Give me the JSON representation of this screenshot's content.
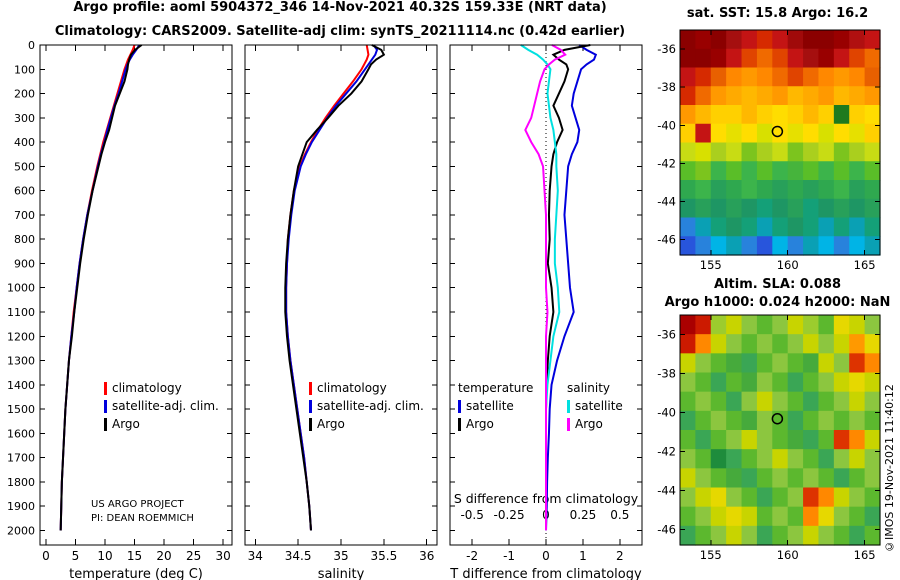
{
  "header": {
    "title_line1": "Argo profile: aoml 5904372_346 14-Nov-2021 40.32S 159.33E (NRT data)",
    "title_line2": "Climatology: CARS2009. Satellite-adj clim: synTS_20211114.nc (0.42d earlier)"
  },
  "annotations": {
    "project_line1": "US ARGO PROJECT",
    "project_line2": "PI: DEAN ROEMMICH",
    "credit_vertical": "©IMOS 19-Nov-2021 11:40:12"
  },
  "legends": {
    "profile": {
      "items": [
        {
          "label": "climatology",
          "color": "#ff0000"
        },
        {
          "label": "satellite-adj. clim.",
          "color": "#0000dd"
        },
        {
          "label": "Argo",
          "color": "#000000"
        }
      ]
    },
    "difference": {
      "temperature_header": "temperature",
      "salinity_header": "salinity",
      "temperature_items": [
        {
          "label": "satellite",
          "color": "#0000dd"
        },
        {
          "label": "Argo",
          "color": "#000000"
        }
      ],
      "salinity_items": [
        {
          "label": "satellite",
          "color": "#00e0e0"
        },
        {
          "label": "Argo",
          "color": "#ff00ff"
        }
      ]
    }
  },
  "chart_data": [
    {
      "id": "temperature_profile",
      "type": "line",
      "xlabel": "temperature (deg C)",
      "xlim": [
        0,
        30
      ],
      "ylim": [
        0,
        2000
      ],
      "x_ticks": [
        0,
        5,
        10,
        15,
        20,
        25,
        30
      ],
      "depth_ticks": [
        0,
        100,
        200,
        300,
        400,
        500,
        600,
        700,
        800,
        900,
        1000,
        1100,
        1200,
        1300,
        1400,
        1500,
        1600,
        1700,
        1800,
        1900,
        2000
      ],
      "depths": [
        0,
        20,
        40,
        60,
        80,
        100,
        150,
        200,
        250,
        300,
        350,
        400,
        450,
        500,
        600,
        700,
        800,
        900,
        1000,
        1100,
        1200,
        1300,
        1400,
        1500,
        1600,
        1700,
        1800,
        1900,
        2000
      ],
      "series": [
        {
          "name": "climatology",
          "color": "#ff0000",
          "values": [
            15.0,
            14.7,
            14.3,
            13.9,
            13.6,
            13.3,
            12.7,
            12.1,
            11.5,
            10.9,
            10.3,
            9.7,
            9.2,
            8.7,
            7.8,
            7.0,
            6.3,
            5.7,
            5.2,
            4.7,
            4.3,
            3.9,
            3.6,
            3.3,
            3.1,
            2.9,
            2.7,
            2.6,
            2.5
          ]
        },
        {
          "name": "satellite-adj. clim.",
          "color": "#0000dd",
          "values": [
            15.8,
            15.3,
            14.7,
            14.2,
            13.8,
            13.5,
            12.9,
            12.3,
            11.6,
            11.0,
            10.4,
            9.9,
            9.3,
            8.8,
            7.9,
            7.0,
            6.3,
            5.7,
            5.2,
            4.8,
            4.3,
            3.9,
            3.6,
            3.3,
            3.1,
            2.9,
            2.7,
            2.6,
            2.5
          ]
        },
        {
          "name": "Argo",
          "color": "#000000",
          "values": [
            16.2,
            15.1,
            14.4,
            14.1,
            13.9,
            13.8,
            13.3,
            12.5,
            11.7,
            11.2,
            10.7,
            10.0,
            9.4,
            8.9,
            7.9,
            7.1,
            6.4,
            5.8,
            5.3,
            4.8,
            4.4,
            3.9,
            3.6,
            3.3,
            3.1,
            2.9,
            2.7,
            2.6,
            2.5
          ]
        }
      ]
    },
    {
      "id": "salinity_profile",
      "type": "line",
      "xlabel": "salinity",
      "xlim": [
        34,
        36
      ],
      "ylim": [
        0,
        2000
      ],
      "x_ticks": [
        34,
        34.5,
        35,
        35.5,
        36
      ],
      "depth_ticks": [
        0,
        100,
        200,
        300,
        400,
        500,
        600,
        700,
        800,
        900,
        1000,
        1100,
        1200,
        1300,
        1400,
        1500,
        1600,
        1700,
        1800,
        1900,
        2000
      ],
      "depths": [
        0,
        20,
        40,
        60,
        80,
        100,
        150,
        200,
        250,
        300,
        350,
        400,
        450,
        500,
        600,
        700,
        800,
        900,
        1000,
        1100,
        1200,
        1300,
        1400,
        1500,
        1600,
        1700,
        1800,
        1900,
        2000
      ],
      "series": [
        {
          "name": "climatology",
          "color": "#ff0000",
          "values": [
            35.3,
            35.31,
            35.32,
            35.3,
            35.27,
            35.24,
            35.14,
            35.03,
            34.92,
            34.82,
            34.73,
            34.65,
            34.58,
            34.52,
            34.45,
            34.41,
            34.38,
            34.37,
            34.36,
            34.36,
            34.38,
            34.41,
            34.45,
            34.49,
            34.53,
            34.57,
            34.6,
            34.63,
            34.65
          ]
        },
        {
          "name": "satellite-adj. clim.",
          "color": "#0000dd",
          "values": [
            35.38,
            35.42,
            35.4,
            35.36,
            35.32,
            35.28,
            35.18,
            35.06,
            34.94,
            34.84,
            34.75,
            34.66,
            34.59,
            34.53,
            34.46,
            34.42,
            34.39,
            34.37,
            34.36,
            34.36,
            34.38,
            34.41,
            34.45,
            34.49,
            34.53,
            34.57,
            34.6,
            34.63,
            34.65
          ]
        },
        {
          "name": "Argo",
          "color": "#000000",
          "values": [
            35.36,
            35.47,
            35.5,
            35.41,
            35.35,
            35.32,
            35.24,
            35.12,
            34.97,
            34.85,
            34.72,
            34.6,
            34.55,
            34.5,
            34.45,
            34.41,
            34.38,
            34.36,
            34.35,
            34.35,
            34.37,
            34.4,
            34.44,
            34.48,
            34.52,
            34.56,
            34.6,
            34.63,
            34.65
          ]
        }
      ]
    },
    {
      "id": "difference_profile",
      "type": "line",
      "xlabel": "T difference from climatology",
      "xlim": [
        -2,
        2
      ],
      "ylim": [
        0,
        2000
      ],
      "x_ticks": [
        -2,
        -1,
        0,
        1,
        2
      ],
      "secondary_axis": {
        "label": "S difference from climatology",
        "ticks": [
          -0.5,
          -0.25,
          0,
          0.25,
          0.5
        ],
        "scale_to_primary": 4
      },
      "depth_ticks": [
        0,
        100,
        200,
        300,
        400,
        500,
        600,
        700,
        800,
        900,
        1000,
        1100,
        1200,
        1300,
        1400,
        1500,
        1600,
        1700,
        1800,
        1900,
        2000
      ],
      "depths": [
        0,
        20,
        40,
        60,
        80,
        100,
        150,
        200,
        250,
        300,
        350,
        400,
        450,
        500,
        600,
        700,
        800,
        900,
        1000,
        1100,
        1200,
        1300,
        1400,
        1500,
        1600,
        1700,
        1800,
        1900,
        2000
      ],
      "series": [
        {
          "name": "temperature satellite",
          "axis": "T",
          "color": "#0000dd",
          "values": [
            0.9,
            1.1,
            1.35,
            1.3,
            1.1,
            0.95,
            0.85,
            0.75,
            0.7,
            0.8,
            0.9,
            0.85,
            0.7,
            0.6,
            0.55,
            0.5,
            0.55,
            0.6,
            0.65,
            0.75,
            0.5,
            0.3,
            0.15,
            0.1,
            0.08,
            0.05,
            0.03,
            0.02,
            0.0
          ]
        },
        {
          "name": "temperature Argo",
          "axis": "T",
          "color": "#000000",
          "values": [
            1.2,
            0.5,
            0.2,
            0.35,
            0.55,
            0.6,
            0.5,
            0.35,
            0.2,
            0.35,
            0.45,
            0.3,
            0.2,
            0.15,
            0.1,
            0.08,
            0.1,
            0.05,
            0.15,
            0.2,
            0.1,
            0.05,
            0.02,
            0.0,
            0.0,
            0.0,
            0.0,
            0.0,
            0.0
          ]
        },
        {
          "name": "salinity satellite",
          "axis": "S",
          "color": "#00e0e0",
          "values": [
            -0.17,
            -0.12,
            -0.06,
            -0.02,
            0.01,
            0.03,
            0.02,
            0.01,
            0.02,
            0.03,
            0.05,
            0.06,
            0.07,
            0.07,
            0.08,
            0.07,
            0.06,
            0.06,
            0.08,
            0.09,
            0.05,
            0.03,
            0.01,
            0.0,
            0.0,
            0.0,
            0.0,
            0.0,
            0.0
          ]
        },
        {
          "name": "salinity Argo",
          "axis": "S",
          "color": "#ff00ff",
          "values": [
            0.04,
            0.1,
            0.13,
            0.06,
            0.02,
            -0.01,
            -0.04,
            -0.06,
            -0.08,
            -0.1,
            -0.14,
            -0.1,
            -0.05,
            -0.02,
            -0.01,
            0.0,
            0.0,
            0.0,
            0.0,
            0.01,
            0.0,
            0.0,
            0.0,
            0.0,
            0.0,
            0.0,
            0.0,
            0.0,
            0.0
          ]
        }
      ]
    },
    {
      "id": "sst_map",
      "type": "heatmap",
      "title": "sat. SST: 15.8 Argo: 16.2",
      "x_ticks": [
        155,
        160,
        165
      ],
      "y_ticks": [
        -36,
        -38,
        -40,
        -42,
        -44,
        -46
      ],
      "lon_range": [
        153,
        166
      ],
      "lat_range": [
        -35,
        -46.8
      ],
      "marker": {
        "lon": 159.33,
        "lat": -40.32
      },
      "grid_colors": [
        [
          "#8b0000",
          "#990000",
          "#8b0000",
          "#a50f0f",
          "#c41414",
          "#d62a00",
          "#c41414",
          "#a00a0a",
          "#8b0000",
          "#8b0000",
          "#990000",
          "#b01010",
          "#c41414"
        ],
        [
          "#8b0000",
          "#8b0000",
          "#990000",
          "#c41414",
          "#e04400",
          "#f06a00",
          "#e04400",
          "#c41414",
          "#a50f0f",
          "#990000",
          "#c41414",
          "#e04400",
          "#f06a00"
        ],
        [
          "#c41414",
          "#d62a00",
          "#e86000",
          "#ff8800",
          "#ff9900",
          "#ff8800",
          "#f06a00",
          "#e04400",
          "#f06a00",
          "#ff8800",
          "#ff9900",
          "#ff8800",
          "#e86000"
        ],
        [
          "#d62a00",
          "#f06a00",
          "#ff9900",
          "#ffaa00",
          "#ffb800",
          "#ffaa00",
          "#ff9900",
          "#ffb800",
          "#ffaa00",
          "#ff9900",
          "#ffb800",
          "#ffaa00",
          "#ff9900"
        ],
        [
          "#ff9900",
          "#ffb800",
          "#ffd000",
          "#ffd000",
          "#ffb800",
          "#ffd000",
          "#ffdd00",
          "#ffd000",
          "#ffb800",
          "#ffd000",
          "#1e7a1e",
          "#ffd000",
          "#ffdd00"
        ],
        [
          "#ffd000",
          "#c41414",
          "#ffdd00",
          "#e6e000",
          "#ffdd00",
          "#d8e000",
          "#ffdd00",
          "#e6e000",
          "#ffdd00",
          "#d8e000",
          "#ffdd00",
          "#e6e000",
          "#ffd000"
        ],
        [
          "#c8dc14",
          "#d8e000",
          "#aacf1e",
          "#c8dc14",
          "#7cc41e",
          "#aacf1e",
          "#c8dc14",
          "#7cc41e",
          "#aacf1e",
          "#c8dc14",
          "#7cc41e",
          "#aacf1e",
          "#c8dc14"
        ],
        [
          "#5abe28",
          "#7cc41e",
          "#3cb44b",
          "#5abe28",
          "#3cb44b",
          "#5abe28",
          "#3cb44b",
          "#46b43c",
          "#5abe28",
          "#3cb44b",
          "#5abe28",
          "#3cb44b",
          "#5abe28"
        ],
        [
          "#2fa84f",
          "#3cb44b",
          "#28a05a",
          "#2fa84f",
          "#3cb44b",
          "#2fa84f",
          "#28a05a",
          "#2fa84f",
          "#28a05a",
          "#2fa84f",
          "#3cb44b",
          "#28a05a",
          "#2fa84f"
        ],
        [
          "#1e9664",
          "#28a05a",
          "#1e9664",
          "#28a05a",
          "#1e9664",
          "#14a078",
          "#1e9664",
          "#28a05a",
          "#14a078",
          "#1e9664",
          "#28a05a",
          "#1e9664",
          "#28a05a"
        ],
        [
          "#2882dc",
          "#0aa0b4",
          "#14a078",
          "#1e9664",
          "#14a078",
          "#0aa0b4",
          "#14a078",
          "#1e9664",
          "#14a078",
          "#0aa0b4",
          "#14a078",
          "#0aa0b4",
          "#14a078"
        ],
        [
          "#2855dc",
          "#2882dc",
          "#00b4e6",
          "#0aa0b4",
          "#2882dc",
          "#2855dc",
          "#00b4e6",
          "#2882dc",
          "#0aa0b4",
          "#00b4e6",
          "#2882dc",
          "#00b4e6",
          "#0aa0b4"
        ]
      ]
    },
    {
      "id": "sla_map",
      "type": "heatmap",
      "title_line1": "Altim. SLA: 0.088",
      "title_line2": "Argo h1000: 0.024 h2000: NaN",
      "x_ticks": [
        155,
        160,
        165
      ],
      "y_ticks": [
        -36,
        -38,
        -40,
        -42,
        -44,
        -46
      ],
      "lon_range": [
        153,
        166
      ],
      "lat_range": [
        -35,
        -46.8
      ],
      "marker": {
        "lon": 159.33,
        "lat": -40.32
      },
      "grid_colors": [
        [
          "#aa0000",
          "#cc1a00",
          "#9ccc2e",
          "#c8d400",
          "#8cc63f",
          "#5cb82e",
          "#8cc63f",
          "#c8d400",
          "#9ccc2e",
          "#5cb82e",
          "#e6d800",
          "#c8d400",
          "#8cc63f"
        ],
        [
          "#cc1a00",
          "#ff8800",
          "#c8d400",
          "#8cc63f",
          "#5cb82e",
          "#8cc63f",
          "#5cb82e",
          "#8cc63f",
          "#c8d400",
          "#8cc63f",
          "#c8d400",
          "#ff9900",
          "#e6d800"
        ],
        [
          "#c8d400",
          "#8cc63f",
          "#5cb82e",
          "#46aa3c",
          "#3aa655",
          "#5cb82e",
          "#8cc63f",
          "#5cb82e",
          "#46aa3c",
          "#c8d400",
          "#8cc63f",
          "#dd3300",
          "#ff8800"
        ],
        [
          "#8cc63f",
          "#5cb82e",
          "#3aa655",
          "#5cb82e",
          "#46aa3c",
          "#8cc63f",
          "#5cb82e",
          "#3aa655",
          "#5cb82e",
          "#8cc63f",
          "#c8d400",
          "#e6d800",
          "#c8d400"
        ],
        [
          "#5cb82e",
          "#8cc63f",
          "#5cb82e",
          "#3aa655",
          "#8cc63f",
          "#c8d400",
          "#8cc63f",
          "#5cb82e",
          "#3aa655",
          "#5cb82e",
          "#8cc63f",
          "#c8d400",
          "#8cc63f"
        ],
        [
          "#3aa655",
          "#5cb82e",
          "#8cc63f",
          "#5cb82e",
          "#46aa3c",
          "#8cc63f",
          "#5cb82e",
          "#3aa655",
          "#5cb82e",
          "#8cc63f",
          "#5cb82e",
          "#8cc63f",
          "#5cb82e"
        ],
        [
          "#5cb82e",
          "#3aa655",
          "#5cb82e",
          "#8cc63f",
          "#c8d400",
          "#8cc63f",
          "#5cb82e",
          "#46aa3c",
          "#3aa655",
          "#5cb82e",
          "#dd3300",
          "#ff8800",
          "#c8d400"
        ],
        [
          "#8cc63f",
          "#5cb82e",
          "#1e8c3c",
          "#3aa655",
          "#5cb82e",
          "#8cc63f",
          "#c8d400",
          "#8cc63f",
          "#5cb82e",
          "#3aa655",
          "#8cc63f",
          "#c8d400",
          "#8cc63f"
        ],
        [
          "#c8d400",
          "#8cc63f",
          "#5cb82e",
          "#46aa3c",
          "#3aa655",
          "#5cb82e",
          "#8cc63f",
          "#5cb82e",
          "#8cc63f",
          "#5cb82e",
          "#3aa655",
          "#5cb82e",
          "#8cc63f"
        ],
        [
          "#8cc63f",
          "#c8d400",
          "#e6d800",
          "#8cc63f",
          "#5cb82e",
          "#3aa655",
          "#5cb82e",
          "#8cc63f",
          "#dd3300",
          "#ff8800",
          "#c8d400",
          "#8cc63f",
          "#5cb82e"
        ],
        [
          "#5cb82e",
          "#8cc63f",
          "#c8d400",
          "#e6d800",
          "#c8d400",
          "#5cb82e",
          "#8cc63f",
          "#5cb82e",
          "#ff8800",
          "#e6d800",
          "#8cc63f",
          "#5cb82e",
          "#3aa655"
        ],
        [
          "#3aa655",
          "#5cb82e",
          "#8cc63f",
          "#c8d400",
          "#8cc63f",
          "#3aa655",
          "#5cb82e",
          "#8cc63f",
          "#c8d400",
          "#8cc63f",
          "#5cb82e",
          "#3aa655",
          "#5cb82e"
        ]
      ]
    }
  ]
}
